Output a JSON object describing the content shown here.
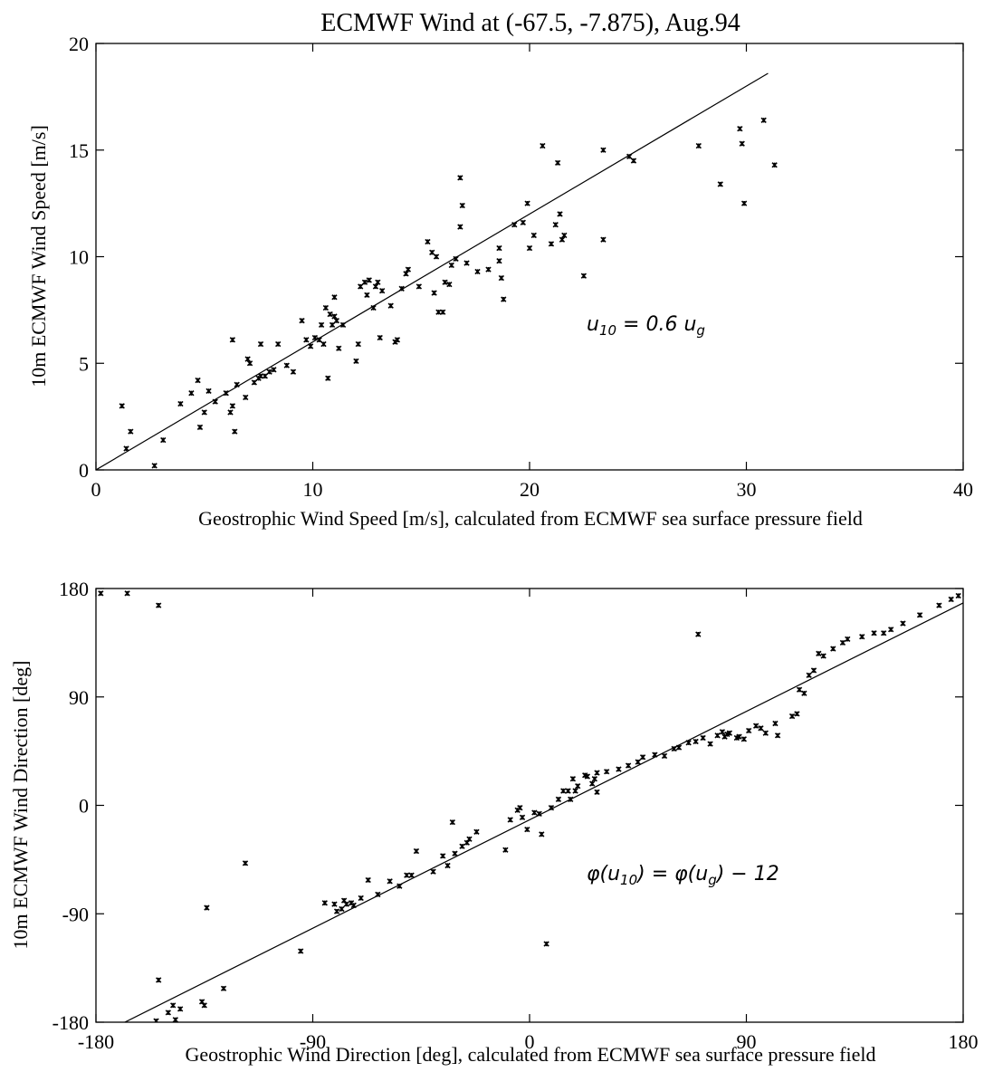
{
  "chart_data": [
    {
      "type": "scatter",
      "title": "ECMWF Wind at (-67.5, -7.875), Aug.94",
      "xlabel": "Geostrophic Wind Speed [m/s], calculated from ECMWF sea surface pressure field",
      "ylabel": "10m ECMWF Wind Speed [m/s]",
      "xlim": [
        0,
        40
      ],
      "ylim": [
        0,
        20
      ],
      "xticks": [
        "0",
        "10",
        "20",
        "30",
        "40"
      ],
      "yticks": [
        "0",
        "5",
        "10",
        "15",
        "20"
      ],
      "annotation": {
        "base": "u",
        "sub": "10",
        "mid": " = 0.6 ",
        "base2": "u",
        "sub2": "g",
        "tail": ""
      },
      "fit_line": {
        "x": [
          0,
          31
        ],
        "y": [
          0,
          18.6
        ]
      },
      "points": [
        [
          1.2,
          3.0
        ],
        [
          1.4,
          1.0
        ],
        [
          1.6,
          1.8
        ],
        [
          2.7,
          0.2
        ],
        [
          3.1,
          1.4
        ],
        [
          3.9,
          3.1
        ],
        [
          4.4,
          3.6
        ],
        [
          4.7,
          4.2
        ],
        [
          4.8,
          2.0
        ],
        [
          5.0,
          2.7
        ],
        [
          5.2,
          3.7
        ],
        [
          5.5,
          3.2
        ],
        [
          6.0,
          3.6
        ],
        [
          6.2,
          2.7
        ],
        [
          6.3,
          3.0
        ],
        [
          6.4,
          1.8
        ],
        [
          6.3,
          6.1
        ],
        [
          6.5,
          4.0
        ],
        [
          6.9,
          3.4
        ],
        [
          7.0,
          5.2
        ],
        [
          7.1,
          5.0
        ],
        [
          7.3,
          4.1
        ],
        [
          7.5,
          4.3
        ],
        [
          7.6,
          4.4
        ],
        [
          7.8,
          4.4
        ],
        [
          7.6,
          5.9
        ],
        [
          8.0,
          4.6
        ],
        [
          8.2,
          4.7
        ],
        [
          8.4,
          5.9
        ],
        [
          8.8,
          4.9
        ],
        [
          9.1,
          4.6
        ],
        [
          9.5,
          7.0
        ],
        [
          9.7,
          6.1
        ],
        [
          9.9,
          5.8
        ],
        [
          10.1,
          6.2
        ],
        [
          10.3,
          6.1
        ],
        [
          10.4,
          6.8
        ],
        [
          10.5,
          5.9
        ],
        [
          10.6,
          7.6
        ],
        [
          10.7,
          4.3
        ],
        [
          10.8,
          7.3
        ],
        [
          10.9,
          6.8
        ],
        [
          11.0,
          7.2
        ],
        [
          11.0,
          8.1
        ],
        [
          11.1,
          7.0
        ],
        [
          11.2,
          5.7
        ],
        [
          11.4,
          6.8
        ],
        [
          12.0,
          5.1
        ],
        [
          12.1,
          5.9
        ],
        [
          12.2,
          8.6
        ],
        [
          12.4,
          8.8
        ],
        [
          12.5,
          8.2
        ],
        [
          12.6,
          8.9
        ],
        [
          12.8,
          7.6
        ],
        [
          12.9,
          8.6
        ],
        [
          13.0,
          8.8
        ],
        [
          13.1,
          6.2
        ],
        [
          13.2,
          8.4
        ],
        [
          13.6,
          7.7
        ],
        [
          13.8,
          6.0
        ],
        [
          13.9,
          6.1
        ],
        [
          14.1,
          8.5
        ],
        [
          14.3,
          9.2
        ],
        [
          14.4,
          9.4
        ],
        [
          14.9,
          8.6
        ],
        [
          15.3,
          10.7
        ],
        [
          15.5,
          10.2
        ],
        [
          15.6,
          8.3
        ],
        [
          15.7,
          10.0
        ],
        [
          15.8,
          7.4
        ],
        [
          16.0,
          7.4
        ],
        [
          16.1,
          8.8
        ],
        [
          16.3,
          8.7
        ],
        [
          16.4,
          9.6
        ],
        [
          16.6,
          9.9
        ],
        [
          16.8,
          13.7
        ],
        [
          16.8,
          11.4
        ],
        [
          16.9,
          12.4
        ],
        [
          17.1,
          9.7
        ],
        [
          17.6,
          9.3
        ],
        [
          18.1,
          9.4
        ],
        [
          18.6,
          10.4
        ],
        [
          18.6,
          9.8
        ],
        [
          18.7,
          9.0
        ],
        [
          18.8,
          8.0
        ],
        [
          19.3,
          11.5
        ],
        [
          19.7,
          11.6
        ],
        [
          19.9,
          12.5
        ],
        [
          20.0,
          10.4
        ],
        [
          20.2,
          11.0
        ],
        [
          20.6,
          15.2
        ],
        [
          21.0,
          10.6
        ],
        [
          21.2,
          11.5
        ],
        [
          21.3,
          14.4
        ],
        [
          21.4,
          12.0
        ],
        [
          21.5,
          10.8
        ],
        [
          21.6,
          11.0
        ],
        [
          22.5,
          9.1
        ],
        [
          23.4,
          15.0
        ],
        [
          23.4,
          10.8
        ],
        [
          24.6,
          14.7
        ],
        [
          24.8,
          14.5
        ],
        [
          27.8,
          15.2
        ],
        [
          28.8,
          13.4
        ],
        [
          29.7,
          16.0
        ],
        [
          29.8,
          15.3
        ],
        [
          29.9,
          12.5
        ],
        [
          30.8,
          16.4
        ],
        [
          31.3,
          14.3
        ]
      ]
    },
    {
      "type": "scatter",
      "title": "",
      "xlabel": "Geostrophic Wind Direction [deg], calculated from ECMWF sea surface pressure field",
      "ylabel": "10m ECMWF Wind Direction [deg]",
      "xlim": [
        -180,
        180
      ],
      "ylim": [
        -180,
        180
      ],
      "xticks": [
        "-180",
        "-90",
        "0",
        "90",
        "180"
      ],
      "yticks": [
        "-180",
        "-90",
        "0",
        "90",
        "180"
      ],
      "annotation": {
        "base": "φ(u",
        "sub": "10",
        "mid": ") = φ(u",
        "base2": "",
        "sub2": "g",
        "tail": ") − 12"
      },
      "fit_line": {
        "x": [
          -180,
          180
        ],
        "y": [
          -192,
          168
        ]
      },
      "points": [
        [
          -178,
          176
        ],
        [
          -167,
          176
        ],
        [
          -154,
          166
        ],
        [
          -173,
          -186
        ],
        [
          -164,
          -184
        ],
        [
          -162,
          -185
        ],
        [
          -155,
          -179
        ],
        [
          -154,
          -145
        ],
        [
          -150,
          -172
        ],
        [
          -148,
          -166
        ],
        [
          -147,
          -178
        ],
        [
          -145,
          -169
        ],
        [
          -140,
          -185
        ],
        [
          -136,
          -163
        ],
        [
          -135,
          -166
        ],
        [
          -134,
          -85
        ],
        [
          -127,
          -152
        ],
        [
          -118,
          -48
        ],
        [
          -95,
          -121
        ],
        [
          -85,
          -81
        ],
        [
          -81,
          -82
        ],
        [
          -80,
          -88
        ],
        [
          -78,
          -86
        ],
        [
          -77,
          -79
        ],
        [
          -76,
          -82
        ],
        [
          -74,
          -81
        ],
        [
          -73,
          -83
        ],
        [
          -70,
          -77
        ],
        [
          -67,
          -62
        ],
        [
          -63,
          -74
        ],
        [
          -58,
          -63
        ],
        [
          -54,
          -67
        ],
        [
          -51,
          -58
        ],
        [
          -49,
          -58
        ],
        [
          -47,
          -38
        ],
        [
          -40,
          -55
        ],
        [
          -36,
          -42
        ],
        [
          -34,
          -50
        ],
        [
          -32,
          -14
        ],
        [
          -31,
          -40
        ],
        [
          -28,
          -34
        ],
        [
          -26,
          -31
        ],
        [
          -25,
          -28
        ],
        [
          -22,
          -22
        ],
        [
          -10,
          -37
        ],
        [
          -8,
          -12
        ],
        [
          -5,
          -4
        ],
        [
          -4,
          -2
        ],
        [
          -3,
          -10
        ],
        [
          -1,
          -20
        ],
        [
          2,
          -6
        ],
        [
          4,
          -7
        ],
        [
          5,
          -24
        ],
        [
          7,
          -115
        ],
        [
          9,
          -2
        ],
        [
          12,
          5
        ],
        [
          14,
          12
        ],
        [
          16,
          12
        ],
        [
          17,
          5
        ],
        [
          18,
          22
        ],
        [
          19,
          12
        ],
        [
          20,
          16
        ],
        [
          23,
          25
        ],
        [
          24,
          24
        ],
        [
          26,
          18
        ],
        [
          27,
          22
        ],
        [
          28,
          27
        ],
        [
          28,
          11
        ],
        [
          32,
          28
        ],
        [
          37,
          30
        ],
        [
          41,
          33
        ],
        [
          45,
          36
        ],
        [
          47,
          40
        ],
        [
          52,
          42
        ],
        [
          56,
          41
        ],
        [
          60,
          47
        ],
        [
          62,
          48
        ],
        [
          66,
          52
        ],
        [
          69,
          53
        ],
        [
          70,
          142
        ],
        [
          72,
          56
        ],
        [
          75,
          51
        ],
        [
          78,
          58
        ],
        [
          80,
          61
        ],
        [
          81,
          57
        ],
        [
          82,
          59
        ],
        [
          83,
          60
        ],
        [
          86,
          56
        ],
        [
          87,
          57
        ],
        [
          89,
          55
        ],
        [
          91,
          62
        ],
        [
          94,
          66
        ],
        [
          96,
          64
        ],
        [
          98,
          60
        ],
        [
          102,
          68
        ],
        [
          103,
          58
        ],
        [
          109,
          74
        ],
        [
          111,
          76
        ],
        [
          112,
          96
        ],
        [
          114,
          93
        ],
        [
          116,
          108
        ],
        [
          118,
          112
        ],
        [
          120,
          126
        ],
        [
          122,
          124
        ],
        [
          126,
          130
        ],
        [
          130,
          135
        ],
        [
          132,
          138
        ],
        [
          138,
          140
        ],
        [
          143,
          143
        ],
        [
          147,
          143
        ],
        [
          150,
          146
        ],
        [
          155,
          151
        ],
        [
          162,
          158
        ],
        [
          170,
          166
        ],
        [
          175,
          171
        ],
        [
          178,
          174
        ]
      ]
    }
  ]
}
